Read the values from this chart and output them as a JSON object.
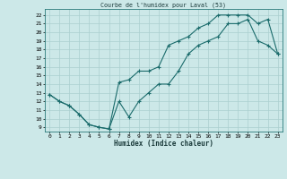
{
  "title": "Courbe de l'humidex pour Laval (53)",
  "xlabel": "Humidex (Indice chaleur)",
  "ylabel": "",
  "bg_color": "#cce8e8",
  "line_color": "#1a6b6b",
  "grid_color": "#aacfcf",
  "xlim": [
    -0.5,
    23.5
  ],
  "ylim": [
    8.5,
    22.7
  ],
  "xticks": [
    0,
    1,
    2,
    3,
    4,
    5,
    6,
    7,
    8,
    9,
    10,
    11,
    12,
    13,
    14,
    15,
    16,
    17,
    18,
    19,
    20,
    21,
    22,
    23
  ],
  "yticks": [
    9,
    10,
    11,
    12,
    13,
    14,
    15,
    16,
    17,
    18,
    19,
    20,
    21,
    22
  ],
  "line1_x": [
    0,
    1,
    2,
    3,
    4,
    5,
    6,
    7,
    8,
    9,
    10,
    11,
    12,
    13,
    14,
    15,
    16,
    17,
    18,
    19,
    20,
    21,
    22,
    23
  ],
  "line1_y": [
    12.8,
    12.0,
    11.5,
    10.5,
    9.3,
    9.0,
    8.8,
    12.0,
    10.2,
    12.0,
    13.0,
    14.0,
    14.0,
    15.5,
    17.5,
    18.5,
    19.0,
    19.5,
    21.0,
    21.0,
    21.5,
    19.0,
    18.5,
    17.5
  ],
  "line2_x": [
    0,
    1,
    2,
    3,
    4,
    5,
    6,
    7,
    8,
    9,
    10,
    11,
    12,
    13,
    14,
    15,
    16,
    17,
    18,
    19,
    20,
    21,
    22,
    23
  ],
  "line2_y": [
    12.8,
    12.0,
    11.5,
    10.5,
    9.3,
    9.0,
    8.8,
    14.2,
    14.5,
    15.5,
    15.5,
    16.0,
    18.5,
    19.0,
    19.5,
    20.5,
    21.0,
    22.0,
    22.0,
    22.0,
    22.0,
    21.0,
    21.5,
    17.5
  ],
  "marker": "+",
  "markersize": 3,
  "linewidth": 0.8
}
